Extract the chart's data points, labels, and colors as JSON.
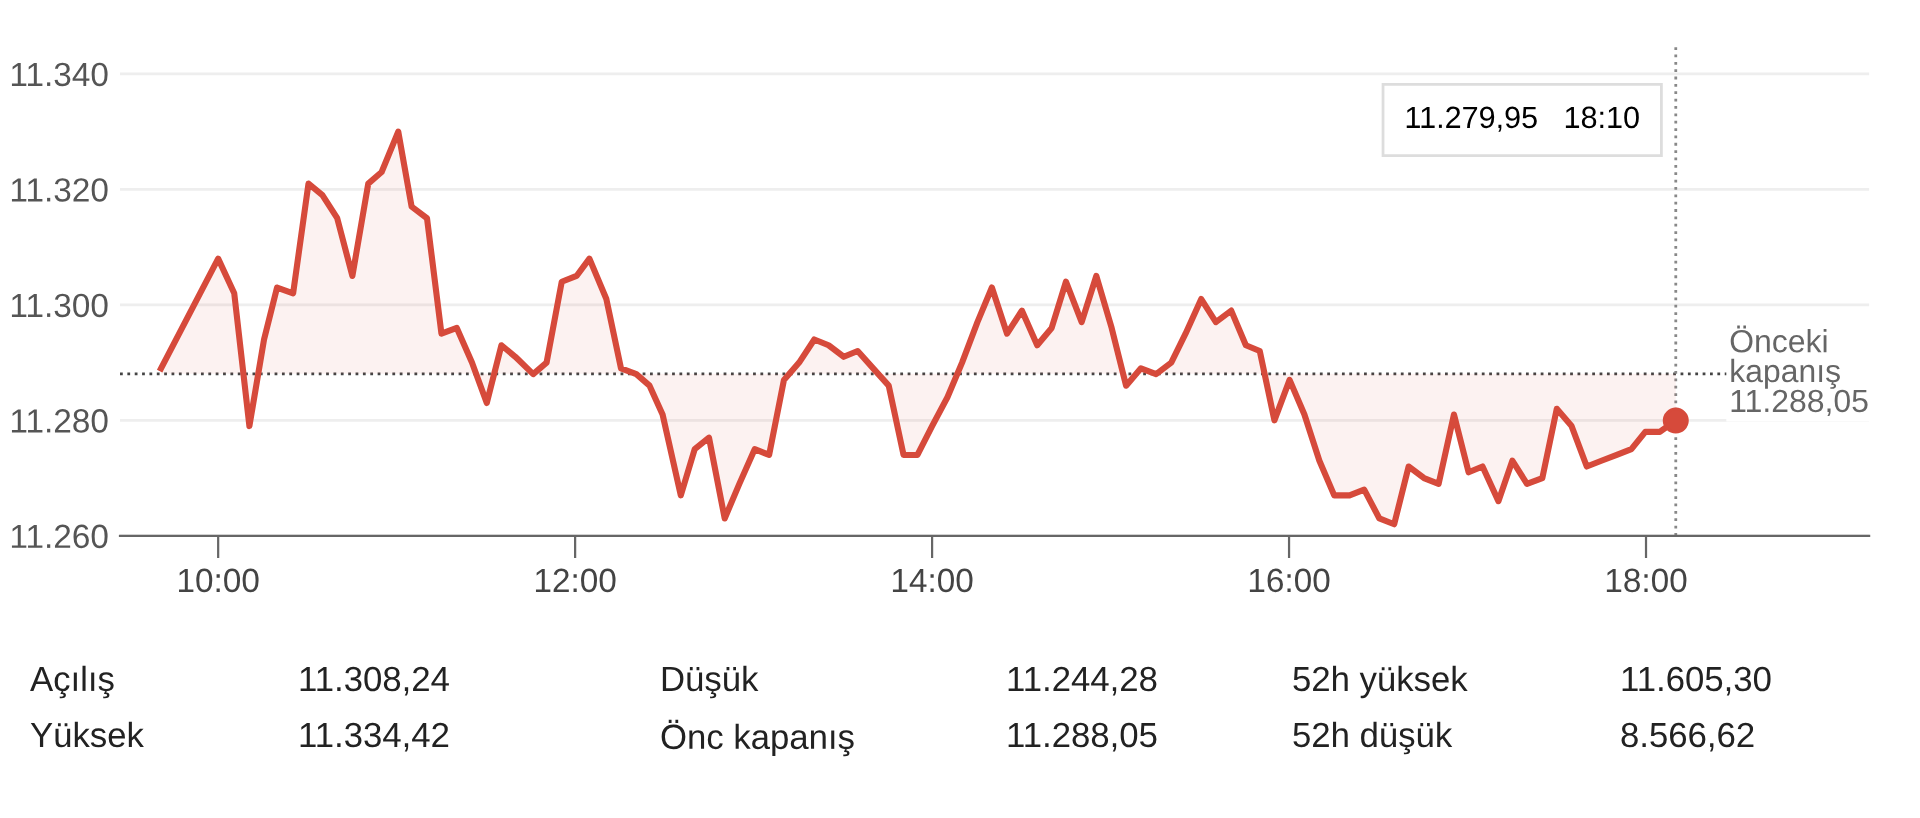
{
  "chart_data": {
    "type": "line",
    "x": [
      9.68,
      10.0,
      10.09,
      10.175,
      10.257,
      10.33,
      10.42,
      10.506,
      10.584,
      10.667,
      10.752,
      10.841,
      10.916,
      11.009,
      11.084,
      11.17,
      11.251,
      11.337,
      11.422,
      11.505,
      11.587,
      11.665,
      11.765,
      11.84,
      11.925,
      12.008,
      12.08,
      12.175,
      12.257,
      12.343,
      12.417,
      12.49,
      12.592,
      12.67,
      12.75,
      12.838,
      12.92,
      13.006,
      13.087,
      13.17,
      13.255,
      13.34,
      13.42,
      13.505,
      13.583,
      13.67,
      13.757,
      13.84,
      13.918,
      14.0,
      14.086,
      14.168,
      14.254,
      14.335,
      14.42,
      14.503,
      14.589,
      14.67,
      14.75,
      14.838,
      14.92,
      15.006,
      15.087,
      15.17,
      15.255,
      15.34,
      15.42,
      15.508,
      15.59,
      15.676,
      15.758,
      15.836,
      15.918,
      16.003,
      16.086,
      16.17,
      16.253,
      16.339,
      16.421,
      16.506,
      16.589,
      16.67,
      16.756,
      16.838,
      16.924,
      17.006,
      17.084,
      17.173,
      17.251,
      17.333,
      17.419,
      17.5,
      17.583,
      17.668,
      17.75,
      17.836,
      17.918,
      17.996,
      18.078,
      18.1667
    ],
    "series": [
      {
        "color": "#d64a3b",
        "values": [
          11289,
          11308,
          11302,
          11279,
          11294,
          11303,
          11302,
          11321,
          11319,
          11315,
          11305,
          11321,
          11323,
          11330,
          11317,
          11315,
          11295,
          11296,
          11290,
          11283,
          11293,
          11291,
          11288,
          11290,
          11304,
          11305,
          11308,
          11301,
          11289,
          11288,
          11286,
          11281,
          11267,
          11275,
          11277,
          11263,
          11269,
          11275,
          11274,
          11287,
          11290,
          11294,
          11293,
          11291,
          11292,
          11289,
          11286,
          11274,
          11274,
          11279,
          11284,
          11290,
          11297,
          11303,
          11295,
          11299,
          11293,
          11296,
          11304,
          11297,
          11305,
          11296,
          11286,
          11289,
          11288,
          11290,
          11295,
          11301,
          11297,
          11299,
          11293,
          11292,
          11280,
          11287,
          11281,
          11273,
          11267,
          11267,
          11268,
          11263,
          11262,
          11272,
          11270,
          11269,
          11281,
          11271,
          11272,
          11266,
          11273,
          11269,
          11270,
          11282,
          11279,
          11272,
          11273,
          11274,
          11275,
          11278,
          11278,
          11279.95
        ]
      },
      {
        "type": "scatter",
        "color": "#d64a3b",
        "x": [
          18.1667
        ],
        "values": [
          11279.95
        ]
      }
    ],
    "xlim": [
      9.45,
      19.25
    ],
    "xticks": [
      {
        "value": 10,
        "label": "10:00"
      },
      {
        "value": 12,
        "label": "12:00"
      },
      {
        "value": 14,
        "label": "14:00"
      },
      {
        "value": 16,
        "label": "16:00"
      },
      {
        "value": 18,
        "label": "18:00"
      }
    ],
    "ylim": [
      11260,
      11345
    ],
    "yticks": [
      {
        "value": 11260,
        "label": "11.260"
      },
      {
        "value": 11280,
        "label": "11.280"
      },
      {
        "value": 11300,
        "label": "11.300"
      },
      {
        "value": 11320,
        "label": "11.320"
      },
      {
        "value": 11340,
        "label": "11.340"
      }
    ],
    "grid": "y",
    "ref_lines": [
      {
        "axis": "y",
        "value": 11288.05,
        "label": "Önceki\nkapanış\n11.288,05",
        "color": "#444444",
        "line_style": "dotted"
      },
      {
        "axis": "x",
        "value": 18.1667,
        "color": "#888888",
        "line_style": "dotted"
      }
    ],
    "annotations": [
      "11.279,95   18:10",
      "Açılış",
      "11.308,24",
      "Düşük",
      "11.244,28",
      "52h yüksek",
      "11.605,30",
      "Yüksek",
      "11.334,42",
      "Önc kapanış",
      "11.288,05",
      "52h düşük",
      "8.566,62"
    ]
  }
}
